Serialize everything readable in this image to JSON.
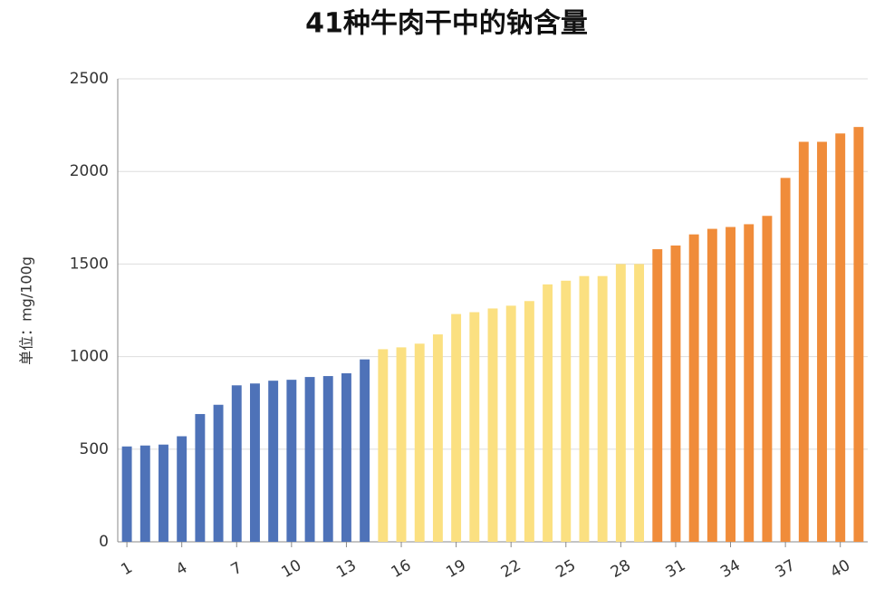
{
  "chart_data": {
    "type": "bar",
    "title": "41种牛肉干中的钠含量",
    "y_label": "单位：mg/100g",
    "categories": [
      1,
      null,
      null,
      4,
      null,
      null,
      7,
      null,
      null,
      10,
      null,
      null,
      13,
      null,
      null,
      16,
      null,
      null,
      19,
      null,
      null,
      22,
      null,
      null,
      25,
      null,
      null,
      28,
      null,
      null,
      31,
      null,
      null,
      34,
      null,
      null,
      37,
      null,
      null,
      40,
      null
    ],
    "values": [
      515,
      520,
      525,
      570,
      690,
      740,
      845,
      855,
      870,
      875,
      890,
      895,
      910,
      985,
      1040,
      1050,
      1070,
      1120,
      1230,
      1240,
      1260,
      1275,
      1300,
      1390,
      1410,
      1435,
      1435,
      1500,
      1500,
      1580,
      1600,
      1660,
      1690,
      1700,
      1715,
      1760,
      1965,
      2160,
      2160,
      2205,
      2240
    ],
    "colors": [
      "#4e72b8",
      "#4e72b8",
      "#4e72b8",
      "#4e72b8",
      "#4e72b8",
      "#4e72b8",
      "#4e72b8",
      "#4e72b8",
      "#4e72b8",
      "#4e72b8",
      "#4e72b8",
      "#4e72b8",
      "#4e72b8",
      "#4e72b8",
      "#fbe081",
      "#fbe081",
      "#fbe081",
      "#fbe081",
      "#fbe081",
      "#fbe081",
      "#fbe081",
      "#fbe081",
      "#fbe081",
      "#fbe081",
      "#fbe081",
      "#fbe081",
      "#fbe081",
      "#fbe081",
      "#fbe081",
      "#f08c3a",
      "#f08c3a",
      "#f08c3a",
      "#f08c3a",
      "#f08c3a",
      "#f08c3a",
      "#f08c3a",
      "#f08c3a",
      "#f08c3a",
      "#f08c3a",
      "#f08c3a",
      "#f08c3a"
    ],
    "ylim": [
      0,
      2500
    ],
    "yticks": [
      0,
      500,
      1000,
      1500,
      2000,
      2500
    ],
    "grid": true
  }
}
